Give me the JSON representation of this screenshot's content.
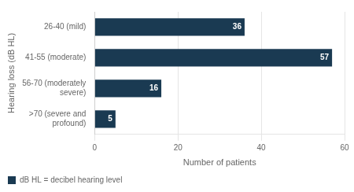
{
  "chart_data": {
    "type": "bar",
    "orientation": "horizontal",
    "categories": [
      "26-40 (mild)",
      "41-55 (moderate)",
      "56-70 (moderately\nsevere)",
      ">70 (severe and\nprofound)"
    ],
    "series": [
      {
        "name": "dB HL = decibel hearing level",
        "color": "#1a3a52",
        "values": [
          36,
          57,
          16,
          5
        ]
      }
    ],
    "xlabel": "Number of patients",
    "ylabel": "Hearing loss (dB HL)",
    "xlim": [
      0,
      60
    ],
    "xticks": [
      0,
      20,
      40,
      60
    ],
    "grid": true,
    "legend": "bottom",
    "data_labels": true
  }
}
